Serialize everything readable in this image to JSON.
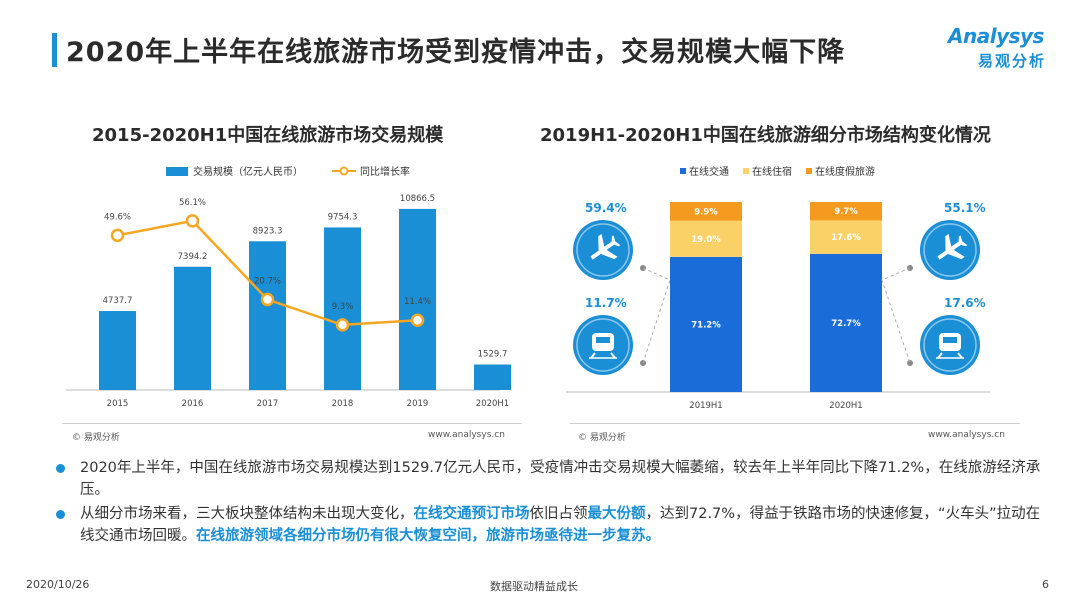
{
  "page_title": "2020年上半年在线旅游市场受到疫情冲击，交易规模大幅下降",
  "logo": {
    "en": "Analysys",
    "cn": "易观分析"
  },
  "colors": {
    "accent": "#1a8fd6",
    "bar_blue": "#1a8fd6",
    "line_orange": "#f5a623",
    "stack_traffic": "#1a6dd8",
    "stack_hotel": "#fad166",
    "stack_vacation": "#f39a1f"
  },
  "left_footnote": "易观分析",
  "left_footnote_url": "www.analysys.cn",
  "right_footnote": "易观分析",
  "right_footnote_url": "www.analysys.cn",
  "bullets": [
    {
      "parts": [
        {
          "text": "2020年上半年，中国在线旅游市场交易规模达到1529.7亿元人民币，受疫情冲击交易规模大幅萎缩，较去年上半年同比下降71.2%，在线旅游经济承压。",
          "hl": false
        }
      ]
    },
    {
      "parts": [
        {
          "text": "从细分市场来看，三大板块整体结构未出现大变化，",
          "hl": false
        },
        {
          "text": "在线交通预订市场",
          "hl": true
        },
        {
          "text": "依旧占领",
          "hl": false
        },
        {
          "text": "最大份额",
          "hl": true
        },
        {
          "text": "，达到72.7%，得益于铁路市场的快速修复，“火车头”拉动在线交通市场回暖。",
          "hl": false
        },
        {
          "text": "在线旅游领域各细分市场仍有很大恢复空间，旅游市场亟待进一步复苏。",
          "hl": true
        }
      ]
    }
  ],
  "footer": {
    "date": "2020/10/26",
    "slogan": "数据驱动精益成长",
    "page": "6"
  },
  "chart_data": [
    {
      "type": "bar",
      "title": "2015-2020H1中国在线旅游市场交易规模",
      "categories": [
        "2015",
        "2016",
        "2017",
        "2018",
        "2019",
        "2020H1"
      ],
      "series": [
        {
          "name": "交易规模（亿元人民币）",
          "type": "bar",
          "values": [
            4737.7,
            7394.2,
            8923.3,
            9754.3,
            10866.5,
            1529.7
          ],
          "labels": [
            "4737.7",
            "7394.2",
            "8923.3",
            "9754.3",
            "10866.5",
            "1529.7"
          ]
        },
        {
          "name": "同比增长率",
          "type": "line",
          "values": [
            49.6,
            56.1,
            20.7,
            9.3,
            11.4,
            null
          ],
          "labels": [
            "49.6%",
            "56.1%",
            "20.7%",
            "9.3%",
            "11.4%",
            ""
          ]
        }
      ],
      "ylim": [
        0,
        12000
      ],
      "y2lim": [
        -20,
        70
      ],
      "legend": "top"
    },
    {
      "type": "bar",
      "stacked": true,
      "title": "2019H1-2020H1中国在线旅游细分市场结构变化情况",
      "categories": [
        "2019H1",
        "2020H1"
      ],
      "series": [
        {
          "name": "在线交通",
          "values": [
            71.2,
            72.7
          ],
          "labels": [
            "71.2%",
            "72.7%"
          ]
        },
        {
          "name": "在线住宿",
          "values": [
            19.0,
            17.6
          ],
          "labels": [
            "19.0%",
            "17.6%"
          ]
        },
        {
          "name": "在线度假旅游",
          "values": [
            9.9,
            9.7
          ],
          "labels": [
            "9.9%",
            "9.7%"
          ]
        }
      ],
      "ylim": [
        0,
        100
      ],
      "legend": "top",
      "annotations": [
        {
          "side": "left",
          "icon": "airplane-icon",
          "value": "59.4%"
        },
        {
          "side": "left",
          "icon": "train-icon",
          "value": "11.7%"
        },
        {
          "side": "right",
          "icon": "airplane-icon",
          "value": "55.1%"
        },
        {
          "side": "right",
          "icon": "train-icon",
          "value": "17.6%"
        }
      ]
    }
  ]
}
